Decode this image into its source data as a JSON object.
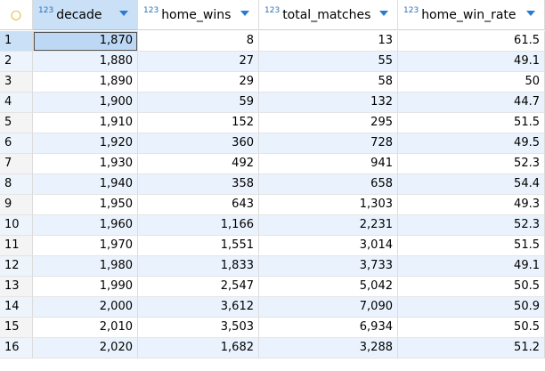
{
  "corner_icon": "circle-outline-icon",
  "colors": {
    "accent": "#2a7ad3",
    "selected_header": "#c9e0f7",
    "alt_row": "#eaf3fd",
    "corner": "#e8a000"
  },
  "columns": [
    {
      "type_badge": "123",
      "name": "decade"
    },
    {
      "type_badge": "123",
      "name": "home_wins"
    },
    {
      "type_badge": "123",
      "name": "total_matches"
    },
    {
      "type_badge": "123",
      "name": "home_win_rate"
    }
  ],
  "rows": [
    {
      "idx": "1",
      "decade": "1,870",
      "home_wins": "8",
      "total_matches": "13",
      "home_win_rate": "61.5"
    },
    {
      "idx": "2",
      "decade": "1,880",
      "home_wins": "27",
      "total_matches": "55",
      "home_win_rate": "49.1"
    },
    {
      "idx": "3",
      "decade": "1,890",
      "home_wins": "29",
      "total_matches": "58",
      "home_win_rate": "50"
    },
    {
      "idx": "4",
      "decade": "1,900",
      "home_wins": "59",
      "total_matches": "132",
      "home_win_rate": "44.7"
    },
    {
      "idx": "5",
      "decade": "1,910",
      "home_wins": "152",
      "total_matches": "295",
      "home_win_rate": "51.5"
    },
    {
      "idx": "6",
      "decade": "1,920",
      "home_wins": "360",
      "total_matches": "728",
      "home_win_rate": "49.5"
    },
    {
      "idx": "7",
      "decade": "1,930",
      "home_wins": "492",
      "total_matches": "941",
      "home_win_rate": "52.3"
    },
    {
      "idx": "8",
      "decade": "1,940",
      "home_wins": "358",
      "total_matches": "658",
      "home_win_rate": "54.4"
    },
    {
      "idx": "9",
      "decade": "1,950",
      "home_wins": "643",
      "total_matches": "1,303",
      "home_win_rate": "49.3"
    },
    {
      "idx": "10",
      "decade": "1,960",
      "home_wins": "1,166",
      "total_matches": "2,231",
      "home_win_rate": "52.3"
    },
    {
      "idx": "11",
      "decade": "1,970",
      "home_wins": "1,551",
      "total_matches": "3,014",
      "home_win_rate": "51.5"
    },
    {
      "idx": "12",
      "decade": "1,980",
      "home_wins": "1,833",
      "total_matches": "3,733",
      "home_win_rate": "49.1"
    },
    {
      "idx": "13",
      "decade": "1,990",
      "home_wins": "2,547",
      "total_matches": "5,042",
      "home_win_rate": "50.5"
    },
    {
      "idx": "14",
      "decade": "2,000",
      "home_wins": "3,612",
      "total_matches": "7,090",
      "home_win_rate": "50.9"
    },
    {
      "idx": "15",
      "decade": "2,010",
      "home_wins": "3,503",
      "total_matches": "6,934",
      "home_win_rate": "50.5"
    },
    {
      "idx": "16",
      "decade": "2,020",
      "home_wins": "1,682",
      "total_matches": "3,288",
      "home_win_rate": "51.2"
    }
  ]
}
